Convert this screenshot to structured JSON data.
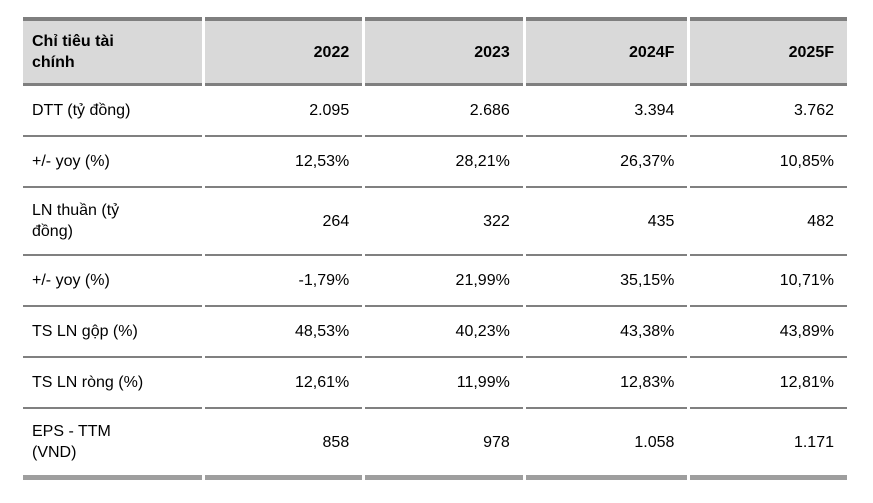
{
  "colors": {
    "header_bg": "#d9d9d9",
    "top_border": "#7f7f7f",
    "header_rule": "#7f7f7f",
    "row_rule": "#808080",
    "bottom_bar": "#9e9e9e"
  },
  "table": {
    "header": {
      "label_column": "Chỉ tiêu tài\nchính",
      "years": [
        "2022",
        "2023",
        "2024F",
        "2025F"
      ]
    },
    "rows": [
      {
        "label": "DTT (tỷ đồng)",
        "values": [
          "2.095",
          "2.686",
          "3.394",
          "3.762"
        ]
      },
      {
        "label": "+/- yoy (%)",
        "values": [
          "12,53%",
          "28,21%",
          "26,37%",
          "10,85%"
        ]
      },
      {
        "label": "LN thuần (tỷ\nđồng)",
        "values": [
          "264",
          "322",
          "435",
          "482"
        ]
      },
      {
        "label": "+/- yoy (%)",
        "values": [
          "-1,79%",
          "21,99%",
          "35,15%",
          "10,71%"
        ]
      },
      {
        "label": "TS LN gộp (%)",
        "values": [
          "48,53%",
          "40,23%",
          "43,38%",
          "43,89%"
        ]
      },
      {
        "label": "TS LN ròng (%)",
        "values": [
          "12,61%",
          "11,99%",
          "12,83%",
          "12,81%"
        ]
      },
      {
        "label": "EPS - TTM\n(VND)",
        "values": [
          "858",
          "978",
          "1.058",
          "1.171"
        ]
      }
    ]
  }
}
